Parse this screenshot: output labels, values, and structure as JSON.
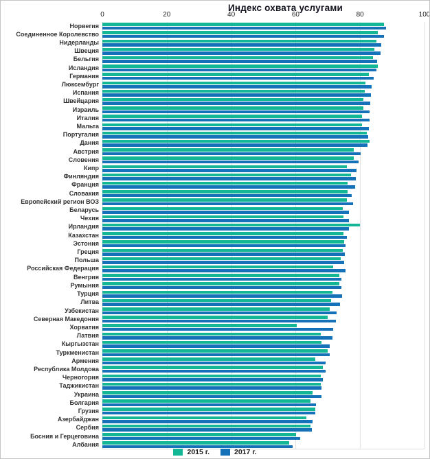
{
  "chart_data": {
    "type": "bar",
    "orientation": "horizontal",
    "title": "Индекс охвата услугами",
    "xlabel": "",
    "ylabel": "",
    "xlim": [
      0,
      100
    ],
    "xticks": [
      0,
      20,
      40,
      60,
      80,
      100
    ],
    "grid": true,
    "legend_position": "bottom",
    "categories": [
      "Норвегия",
      "Соединенное Королевство",
      "Нидерланды",
      "Швеция",
      "Бельгия",
      "Исландия",
      "Германия",
      "Люксембург",
      "Испания",
      "Швейцария",
      "Израиль",
      "Италия",
      "Мальта",
      "Португалия",
      "Дания",
      "Австрия",
      "Словения",
      "Кипр",
      "Финляндия",
      "Франция",
      "Словакия",
      "Европейский регион ВОЗ",
      "Беларусь",
      "Чехия",
      "Ирландия",
      "Казахстан",
      "Эстония",
      "Греция",
      "Польша",
      "Российская Федерация",
      "Венгрия",
      "Румыния",
      "Турция",
      "Литва",
      "Узбекистан",
      "Северная Македония",
      "Хорватия",
      "Латвия",
      "Кыргызстан",
      "Туркменистан",
      "Армения",
      "Республика Молдова",
      "Черногория",
      "Таджикистан",
      "Украина",
      "Болгария",
      "Грузия",
      "Азербайджан",
      "Сербия",
      "Босния и Герцеговина",
      "Албания"
    ],
    "series": [
      {
        "name": "2015 г.",
        "color": "#13b795",
        "values": [
          87.5,
          85.5,
          85,
          84.5,
          84,
          85.5,
          82.7,
          81.7,
          81.5,
          81,
          81,
          80.7,
          80.7,
          82,
          82.9,
          78,
          78,
          76,
          77.2,
          76.2,
          76.2,
          76,
          74.6,
          74.8,
          80,
          74.8,
          75,
          74.6,
          74,
          71.7,
          73.6,
          73.5,
          71.5,
          71,
          70.6,
          70,
          60.3,
          67.7,
          68.1,
          70,
          66.2,
          68.5,
          67.9,
          67.7,
          65.3,
          64.5,
          66.1,
          63.4,
          64.7,
          60.2,
          58.1
        ]
      },
      {
        "name": "2017 г.",
        "color": "#1571b8",
        "values": [
          88,
          87.5,
          86.6,
          86.4,
          85.2,
          85,
          84.2,
          83.6,
          83.4,
          83.2,
          83,
          82.9,
          82.8,
          82.6,
          82.3,
          80.2,
          79.6,
          78.8,
          78.6,
          78.4,
          77.3,
          77.9,
          76.5,
          76.6,
          76.5,
          75.8,
          75.5,
          75.2,
          75,
          75.4,
          74.3,
          74.2,
          74.4,
          73.8,
          72.8,
          72.4,
          71.6,
          71.4,
          70.6,
          70.5,
          69.4,
          69.3,
          68.4,
          68.1,
          68,
          66.3,
          66.2,
          65.2,
          65.1,
          61.4,
          59.1
        ]
      }
    ],
    "colors": {
      "gridline": "#e2e2e2",
      "axis_border": "#dcdcdc",
      "frame_border": "#c4c4c4"
    }
  }
}
